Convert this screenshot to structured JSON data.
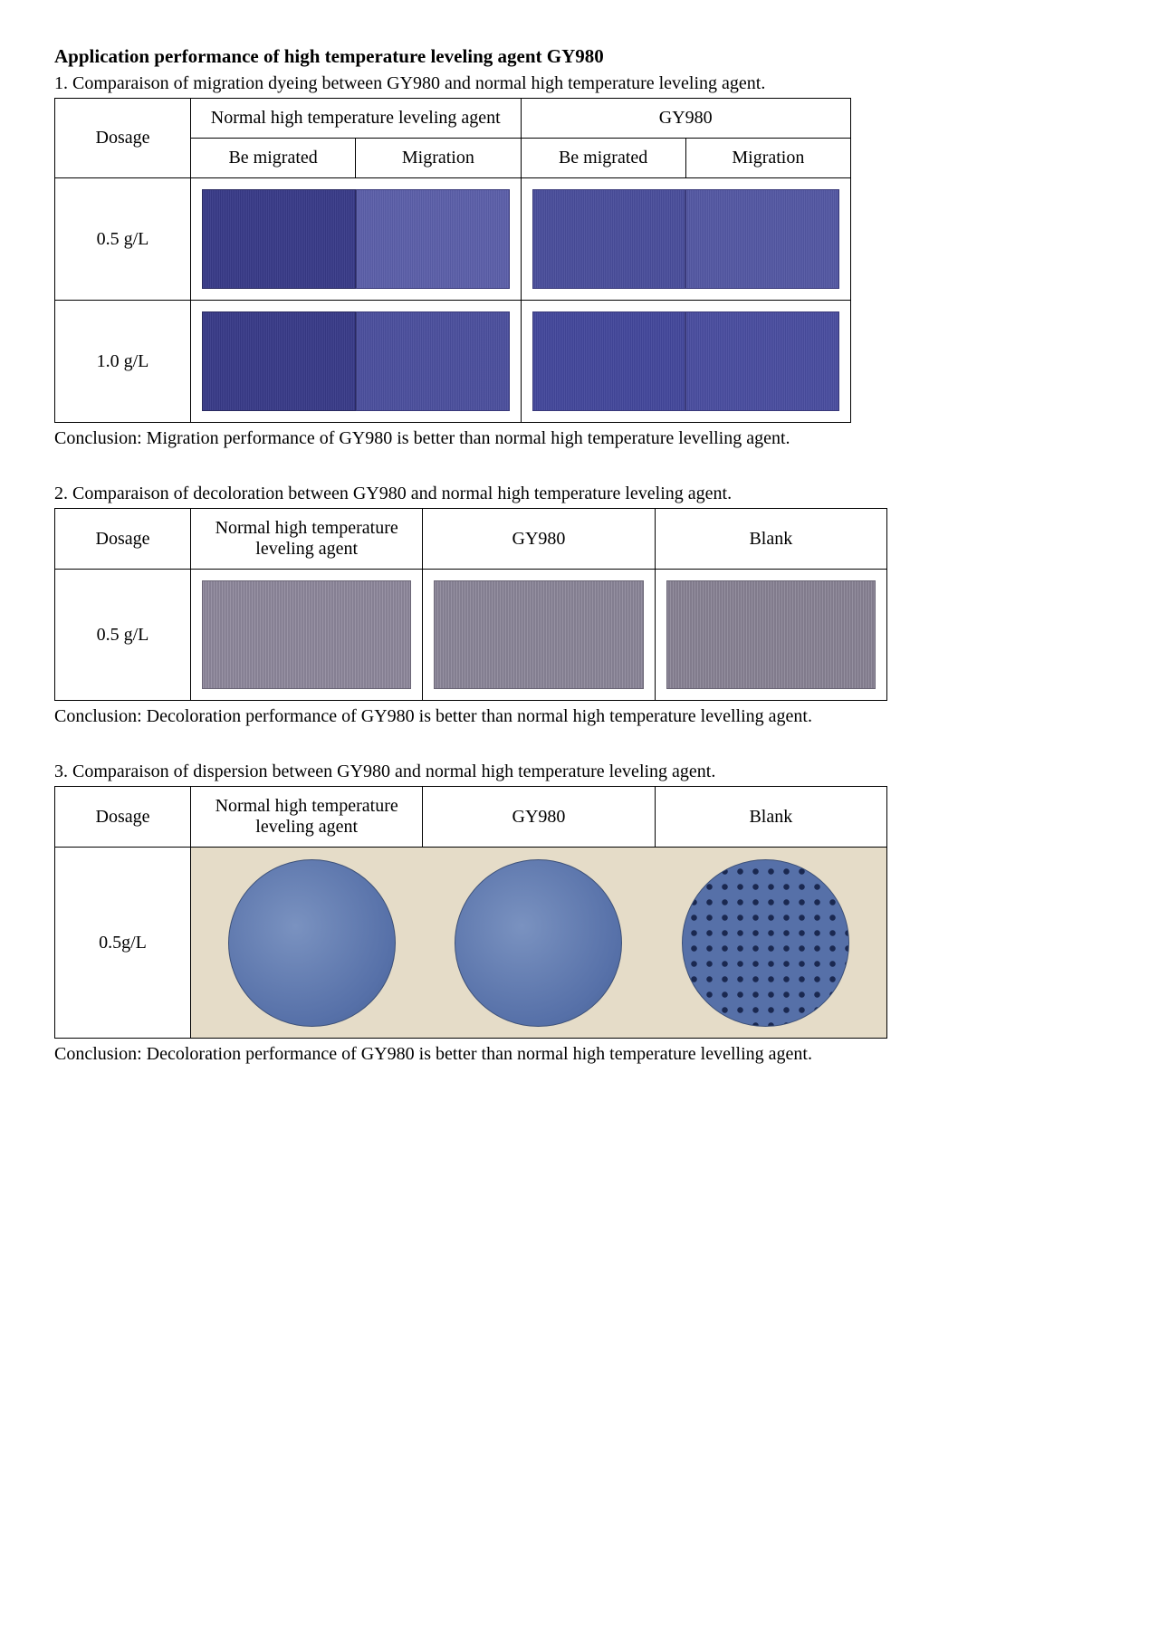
{
  "title": "Application performance of high temperature leveling agent GY980",
  "sections": [
    {
      "heading": "1. Comparaison of migration dyeing between GY980 and normal high temperature leveling agent.",
      "conclusion": "Conclusion: Migration performance of GY980 is better than normal high temperature levelling agent."
    },
    {
      "heading": "2.  Comparaison of decoloration between GY980 and normal high temperature leveling agent.",
      "conclusion": "Conclusion: Decoloration performance of GY980 is better than normal high temperature levelling agent."
    },
    {
      "heading": "3.  Comparaison of dispersion between GY980 and normal high temperature leveling agent.",
      "conclusion": "Conclusion: Decoloration performance of GY980 is better than normal high temperature levelling agent."
    }
  ],
  "table1": {
    "dosage_header": "Dosage",
    "group_a": "Normal high temperature leveling agent",
    "group_b": "GY980",
    "sub_a": "Be migrated",
    "sub_b": "Migration",
    "rows": [
      {
        "dosage": "0.5 g/L",
        "a1_color": "#383a88",
        "a2_color": "#5a5ea8",
        "b1_color": "#484c9a",
        "b2_color": "#5256a2"
      },
      {
        "dosage": "1.0 g/L",
        "a1_color": "#383a88",
        "a2_color": "#4a4e9c",
        "b1_color": "#42469a",
        "b2_color": "#484c9e"
      }
    ]
  },
  "table2": {
    "dosage_header": "Dosage",
    "col_a": "Normal high temperature leveling agent",
    "col_b": "GY980",
    "col_c": "Blank",
    "row": {
      "dosage": "0.5 g/L",
      "a_color": "#8d879b",
      "b_color": "#8a8598",
      "c_color": "#888294"
    }
  },
  "table3": {
    "dosage_header": "Dosage",
    "col_a": "Normal high temperature leveling agent",
    "col_b": "GY980",
    "col_c": "Blank",
    "row": {
      "dosage": "0.5g/L",
      "bg_color": "#e5dcc8",
      "a_style": "smooth",
      "b_style": "smooth",
      "c_style": "dotted",
      "circle_base": "#5670a8",
      "dot_color": "#1a2850"
    }
  }
}
